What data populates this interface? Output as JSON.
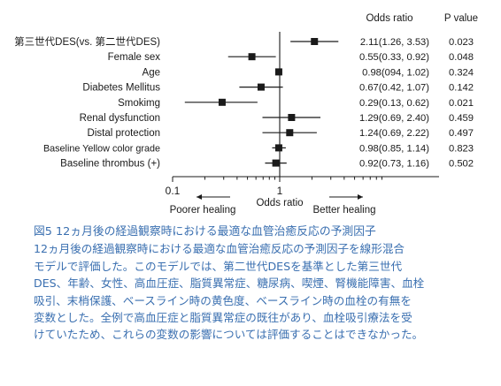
{
  "chart_data": {
    "type": "forest",
    "header": {
      "or_label": "Odds ratio",
      "p_label": "P value"
    },
    "rows": [
      {
        "label": "第三世代DES(vs. 第二世代DES)",
        "or": 2.11,
        "lo": 1.26,
        "hi": 3.53,
        "or_text": "2.11(1.26, 3.53)",
        "p_text": "0.023"
      },
      {
        "label": "Female sex",
        "or": 0.55,
        "lo": 0.33,
        "hi": 0.92,
        "or_text": "0.55(0.33, 0.92)",
        "p_text": "0.048"
      },
      {
        "label": "Age",
        "or": 0.98,
        "lo": 0.94,
        "hi": 1.02,
        "or_text": "0.98(094, 1.02)",
        "p_text": "0.324"
      },
      {
        "label": "Diabetes Mellitus",
        "or": 0.67,
        "lo": 0.42,
        "hi": 1.07,
        "or_text": "0.67(0.42, 1.07)",
        "p_text": "0.142"
      },
      {
        "label": "Smokimg",
        "or": 0.29,
        "lo": 0.13,
        "hi": 0.62,
        "or_text": "0.29(0.13, 0.62)",
        "p_text": "0.021"
      },
      {
        "label": "Renal dysfunction",
        "or": 1.29,
        "lo": 0.69,
        "hi": 2.4,
        "or_text": "1.29(0.69, 2.40)",
        "p_text": "0.459"
      },
      {
        "label": "Distal protection",
        "or": 1.24,
        "lo": 0.69,
        "hi": 2.22,
        "or_text": "1.24(0.69, 2.22)",
        "p_text": "0.497"
      },
      {
        "label": "Baseline Yellow color grade",
        "or": 0.98,
        "lo": 0.85,
        "hi": 1.14,
        "or_text": "0.98(0.85, 1.14)",
        "p_text": "0.823"
      },
      {
        "label": "Baseline thrombus (+)",
        "or": 0.92,
        "lo": 0.73,
        "hi": 1.16,
        "or_text": "0.92(0.73, 1.16)",
        "p_text": "0.502"
      }
    ],
    "x_scale": "log",
    "xlim": [
      0.1,
      10
    ],
    "x_ticks": [
      {
        "value": 0.1,
        "label": "0.1"
      },
      {
        "value": 1,
        "label": "1"
      }
    ],
    "xlabel": "Odds ratio",
    "left_annotation": "Poorer healing",
    "right_annotation": "Better healing",
    "reference_line": 1
  },
  "caption": {
    "title": "図5 12ヵ月後の経過観察時における最適な血管治癒反応の予測因子",
    "lines": [
      "12ヵ月後の経過観察時における最適な血管治癒反応の予測因子を線形混合",
      "モデルで評価した。このモデルでは、第二世代DESを基準とした第三世代",
      "DES、年齢、女性、高血圧症、脂質異常症、糖尿病、喫煙、腎機能障害、血栓",
      "吸引、末梢保護、ベースライン時の黄色度、ベースライン時の血栓の有無を",
      "変数とした。全例で高血圧症と脂質異常症の既往があり、血栓吸引療法を受",
      "けていたため、これらの変数の影響については評価することはできなかった。"
    ]
  },
  "colors": {
    "caption": "#3a6fb0",
    "marker": "#1a1a1a"
  }
}
